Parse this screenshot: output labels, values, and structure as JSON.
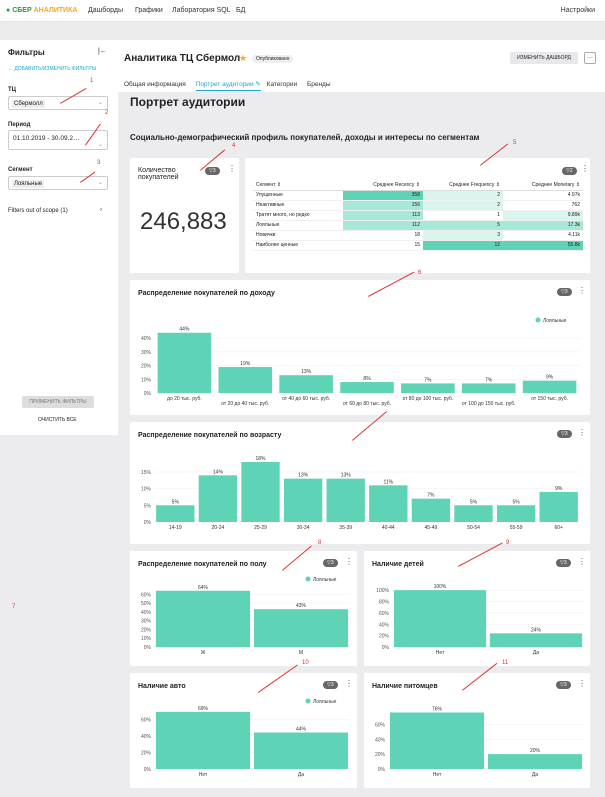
{
  "topbar": {
    "logo_a": "СБЕР",
    "logo_b": "АНАЛИТИКА",
    "nav": [
      "Дашборды",
      "Графики",
      "Лаборатория SQL",
      "БД"
    ],
    "settings": "Настройки"
  },
  "filters": {
    "title": "Фильтры",
    "collapse": "|←",
    "add": "ДОБАВИТЬ/ИЗМЕНИТЬ ФИЛЬТРЫ",
    "tc_label": "ТЦ",
    "tc_value": "Сбермолл",
    "period_label": "Период",
    "period_value": "01.10.2019 - 30.09.2…",
    "segment_label": "Сегмент",
    "segment_value": "Лояльные",
    "out_of_scope": "Filters out of scope (1)",
    "apply": "ПРИМЕНИТЬ ФИЛЬТРЫ",
    "clear": "ОЧИСТИТЬ ВСЕ"
  },
  "header": {
    "title": "Аналитика ТЦ Сбермол",
    "status": "Опубликовано",
    "edit": "ИЗМЕНИТЬ ДАШБОРД",
    "more": "···"
  },
  "tabs": [
    "Общая информация",
    "Портрет аудитории",
    "Категории",
    "Бренды"
  ],
  "page_title": "Портрет аудитории",
  "section_title": "Социально-демографический профиль покупателей, доходы и интересы по сегментам",
  "kpi": {
    "title": "Количество покупателей",
    "value": "246,883",
    "badge": "▽3"
  },
  "segments_table": {
    "badge": "▽2",
    "headers": [
      "Сегмент",
      "Среднее Recency",
      "Среднее Frequency",
      "Среднее Monetary"
    ],
    "rows": [
      [
        "Упущенные",
        "358",
        "2",
        "4.97k"
      ],
      [
        "Неактивные",
        "156",
        "2",
        "762"
      ],
      [
        "Тратят много, но редко",
        "113",
        "1",
        "9.89k"
      ],
      [
        "Лояльные",
        "112",
        "5",
        "17.3k"
      ],
      [
        "Новички",
        "18",
        "3",
        "4.11k"
      ],
      [
        "Наиболее ценные",
        "15",
        "12",
        "55.8k"
      ]
    ]
  },
  "charts": {
    "legend": "Лояльные",
    "income": {
      "title": "Распределение покупателей по доходу",
      "badge": "▽3"
    },
    "age": {
      "title": "Распределение покупателей по возрасту",
      "badge": "▽3"
    },
    "gender": {
      "title": "Распределение покупателей по полу",
      "badge": "▽3"
    },
    "kids": {
      "title": "Наличие детей",
      "badge": "▽3"
    },
    "auto": {
      "title": "Наличие авто",
      "badge": "▽3"
    },
    "pets": {
      "title": "Наличие питомцев",
      "badge": "▽3"
    }
  },
  "chart_data": [
    {
      "type": "bar",
      "title": "Распределение покупателей по доходу",
      "categories": [
        "до 20 тыс. руб.",
        "от 20 до 40 тыс. руб.",
        "от 40 до 60 тыс. руб.",
        "от 60 до 80 тыс. руб.",
        "от 80 до 100 тыс. руб.",
        "от 100 до 150 тыс. руб.",
        "от 150 тыс. руб."
      ],
      "values": [
        44,
        19,
        13,
        8,
        7,
        7,
        9
      ],
      "labels": [
        "44%",
        "19%",
        "13%",
        "8%",
        "7%",
        "7%",
        "9%"
      ],
      "yticks": [
        "0%",
        "10%",
        "20%",
        "30%",
        "40%"
      ],
      "ylim": [
        0,
        46
      ],
      "series": [
        {
          "name": "Лояльные",
          "values": [
            44,
            19,
            13,
            8,
            7,
            7,
            9
          ]
        }
      ]
    },
    {
      "type": "bar",
      "title": "Распределение покупателей по возрасту",
      "categories": [
        "14-19",
        "20-24",
        "25-29",
        "30-34",
        "35-39",
        "40-44",
        "45-49",
        "50-54",
        "55-59",
        "60+"
      ],
      "values": [
        5,
        14,
        18,
        13,
        13,
        11,
        7,
        5,
        5,
        9
      ],
      "labels": [
        "5%",
        "14%",
        "18%",
        "13%",
        "13%",
        "11%",
        "7%",
        "5%",
        "5%",
        "9%"
      ],
      "yticks": [
        "0%",
        "5%",
        "10%",
        "15%"
      ],
      "ylim": [
        0,
        18
      ]
    },
    {
      "type": "bar",
      "title": "Распределение покупателей по полу",
      "categories": [
        "Ж",
        "М"
      ],
      "values": [
        64,
        43
      ],
      "labels": [
        "64%",
        "43%"
      ],
      "yticks": [
        "0%",
        "10%",
        "20%",
        "30%",
        "40%",
        "50%",
        "60%"
      ],
      "ylim": [
        0,
        66
      ],
      "series": [
        {
          "name": "Лояльные",
          "values": [
            64,
            43
          ]
        }
      ]
    },
    {
      "type": "bar",
      "title": "Наличие детей",
      "categories": [
        "Нет",
        "Да"
      ],
      "values": [
        100,
        24
      ],
      "labels": [
        "100%",
        "24%"
      ],
      "yticks": [
        "0%",
        "20%",
        "40%",
        "60%",
        "80%",
        "100%"
      ],
      "ylim": [
        0,
        102
      ]
    },
    {
      "type": "bar",
      "title": "Наличие авто",
      "categories": [
        "Нет",
        "Да"
      ],
      "values": [
        69,
        44
      ],
      "labels": [
        "69%",
        "44%"
      ],
      "yticks": [
        "0%",
        "20%",
        "40%",
        "60%"
      ],
      "ylim": [
        0,
        70
      ],
      "series": [
        {
          "name": "Лояльные",
          "values": [
            69,
            44
          ]
        }
      ]
    },
    {
      "type": "bar",
      "title": "Наличие питомцев",
      "categories": [
        "Нет",
        "Да"
      ],
      "values": [
        76,
        20
      ],
      "labels": [
        "76%",
        "20%"
      ],
      "yticks": [
        "0%",
        "20%",
        "40%",
        "60%"
      ],
      "ylim": [
        0,
        78
      ]
    }
  ],
  "annotations": [
    "1",
    "2",
    "3",
    "4",
    "5",
    "6",
    "7",
    "8",
    "9",
    "10",
    "11"
  ],
  "colors": {
    "bar": "#5ed3b6",
    "accent": "#20a7c9",
    "table_strong": "#5ed3b6",
    "table_mid": "#a8e8d8",
    "table_light": "#d9f5ee"
  }
}
